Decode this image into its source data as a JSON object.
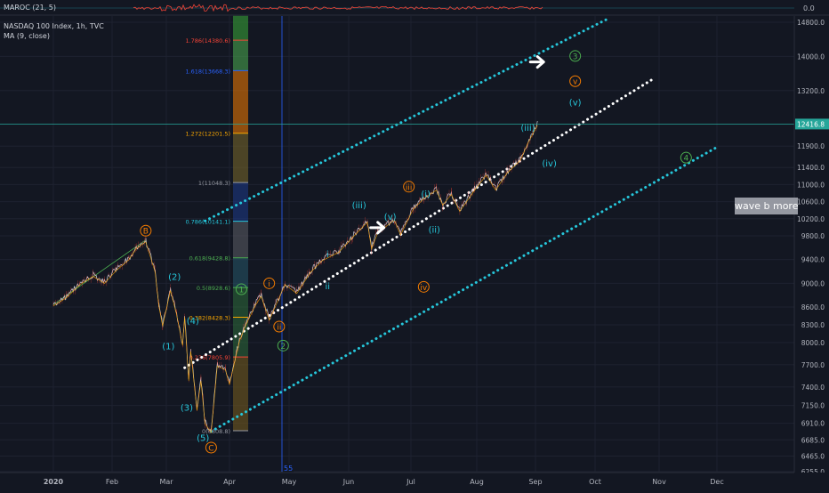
{
  "header": {
    "indicator_name": "MAROC (21, 5)",
    "indicator_value": "0.0",
    "symbol": "NASDAQ 100 Index, 1h, TVC",
    "ma": "MA (9, close)"
  },
  "user_label": "wave b more",
  "chart_data": {
    "type": "line",
    "title": "NASDAQ 100 Index, 1h, TVC",
    "ylim": [
      6255,
      14800
    ],
    "price_ticks": [
      14800,
      14000,
      13200,
      12416.8,
      11900,
      11400,
      11000,
      10600,
      10200,
      9800,
      9400,
      9000,
      8600,
      8300,
      8000,
      7700,
      7400,
      7150,
      6910,
      6685,
      6465,
      6255
    ],
    "last_price": "12416.8",
    "time_ticks": [
      "2020",
      "Feb",
      "Mar",
      "Apr",
      "May",
      "Jun",
      "Jul",
      "Aug",
      "Sep",
      "Oct",
      "Nov",
      "Dec"
    ],
    "fib_levels": [
      {
        "label": "1.786(14380.6)",
        "value": 14380.6,
        "color": "#f44336"
      },
      {
        "label": "1.618(13668.3)",
        "value": 13668.3,
        "color": "#2962ff"
      },
      {
        "label": "1.272(12201.5)",
        "value": 12201.5,
        "color": "#f7a600"
      },
      {
        "label": "1(11048.3)",
        "value": 11048.3,
        "color": "#9598a1"
      },
      {
        "label": "0.786(10141.1)",
        "value": 10141.1,
        "color": "#26c6da"
      },
      {
        "label": "0.618(9428.8)",
        "value": 9428.8,
        "color": "#4caf50"
      },
      {
        "label": "0.5(8928.6)",
        "value": 8928.6,
        "color": "#4caf50"
      },
      {
        "label": "0.382(8428.3)",
        "value": 8428.3,
        "color": "#f7a600"
      },
      {
        "label": "0.236(7805.9)",
        "value": 7805.9,
        "color": "#f44336"
      },
      {
        "label": "0(6808.8)",
        "value": 6808.8,
        "color": "#9598a1"
      }
    ],
    "bar_count_label": "55",
    "price_path": [
      {
        "t": "2020-01-01",
        "v": 8640
      },
      {
        "t": "2020-01-08",
        "v": 8780
      },
      {
        "t": "2020-01-15",
        "v": 9000
      },
      {
        "t": "2020-01-22",
        "v": 9140
      },
      {
        "t": "2020-01-28",
        "v": 9020
      },
      {
        "t": "2020-02-03",
        "v": 9230
      },
      {
        "t": "2020-02-10",
        "v": 9420
      },
      {
        "t": "2020-02-14",
        "v": 9610
      },
      {
        "t": "2020-02-19",
        "v": 9720
      },
      {
        "t": "2020-02-24",
        "v": 9210
      },
      {
        "t": "2020-02-26",
        "v": 8640
      },
      {
        "t": "2020-02-28",
        "v": 8300
      },
      {
        "t": "2020-03-03",
        "v": 8900
      },
      {
        "t": "2020-03-06",
        "v": 8500
      },
      {
        "t": "2020-03-09",
        "v": 7980
      },
      {
        "t": "2020-03-10",
        "v": 8450
      },
      {
        "t": "2020-03-12",
        "v": 7500
      },
      {
        "t": "2020-03-13",
        "v": 7900
      },
      {
        "t": "2020-03-16",
        "v": 7100
      },
      {
        "t": "2020-03-18",
        "v": 7500
      },
      {
        "t": "2020-03-20",
        "v": 6920
      },
      {
        "t": "2020-03-23",
        "v": 6800
      },
      {
        "t": "2020-03-26",
        "v": 7700
      },
      {
        "t": "2020-03-30",
        "v": 7650
      },
      {
        "t": "2020-04-01",
        "v": 7450
      },
      {
        "t": "2020-04-06",
        "v": 8050
      },
      {
        "t": "2020-04-09",
        "v": 8300
      },
      {
        "t": "2020-04-14",
        "v": 8650
      },
      {
        "t": "2020-04-17",
        "v": 8800
      },
      {
        "t": "2020-04-21",
        "v": 8400
      },
      {
        "t": "2020-04-29",
        "v": 9000
      },
      {
        "t": "2020-05-05",
        "v": 8850
      },
      {
        "t": "2020-05-12",
        "v": 9200
      },
      {
        "t": "2020-05-18",
        "v": 9400
      },
      {
        "t": "2020-05-27",
        "v": 9550
      },
      {
        "t": "2020-06-03",
        "v": 9800
      },
      {
        "t": "2020-06-10",
        "v": 10150
      },
      {
        "t": "2020-06-12",
        "v": 9600
      },
      {
        "t": "2020-06-15",
        "v": 9900
      },
      {
        "t": "2020-06-23",
        "v": 10200
      },
      {
        "t": "2020-06-26",
        "v": 9850
      },
      {
        "t": "2020-07-02",
        "v": 10450
      },
      {
        "t": "2020-07-07",
        "v": 10700
      },
      {
        "t": "2020-07-13",
        "v": 10900
      },
      {
        "t": "2020-07-16",
        "v": 10550
      },
      {
        "t": "2020-07-20",
        "v": 10800
      },
      {
        "t": "2020-07-24",
        "v": 10400
      },
      {
        "t": "2020-07-31",
        "v": 10900
      },
      {
        "t": "2020-08-06",
        "v": 11250
      },
      {
        "t": "2020-08-11",
        "v": 10900
      },
      {
        "t": "2020-08-17",
        "v": 11300
      },
      {
        "t": "2020-08-24",
        "v": 11600
      },
      {
        "t": "2020-08-28",
        "v": 12000
      },
      {
        "t": "2020-09-02",
        "v": 12416.8
      }
    ],
    "series": [
      {
        "name": "MA (9, close)"
      }
    ]
  },
  "wave_labels": [
    {
      "text": "B",
      "t": "2020-02-19",
      "v": 9920,
      "style": "circle",
      "color": "#f57c00"
    },
    {
      "text": "(2)",
      "t": "2020-03-05",
      "v": 9110,
      "style": "plain",
      "color": "#26c6da"
    },
    {
      "text": "(1)",
      "t": "2020-03-02",
      "v": 7950,
      "style": "plain",
      "color": "#26c6da"
    },
    {
      "text": "(4)",
      "t": "2020-03-14",
      "v": 8370,
      "style": "plain",
      "color": "#26c6da"
    },
    {
      "text": "(3)",
      "t": "2020-03-11",
      "v": 7120,
      "style": "plain",
      "color": "#26c6da"
    },
    {
      "text": "(5)",
      "t": "2020-03-19",
      "v": 6710,
      "style": "plain",
      "color": "#26c6da"
    },
    {
      "text": "C",
      "t": "2020-03-23",
      "v": 6580,
      "style": "circle",
      "color": "#f57c00"
    },
    {
      "text": "1",
      "t": "2020-04-07",
      "v": 8900,
      "style": "circle",
      "color": "#4caf50"
    },
    {
      "text": "2",
      "t": "2020-04-28",
      "v": 7960,
      "style": "circle",
      "color": "#4caf50"
    },
    {
      "text": "i",
      "t": "2020-04-21",
      "v": 9000,
      "style": "circle",
      "color": "#f57c00"
    },
    {
      "text": "ii",
      "t": "2020-04-26",
      "v": 8270,
      "style": "circle",
      "color": "#f57c00"
    },
    {
      "text": "i",
      "t": "2020-05-21",
      "v": 9490,
      "style": "plain",
      "color": "#26c6da"
    },
    {
      "text": "ii",
      "t": "2020-05-21",
      "v": 8950,
      "style": "plain",
      "color": "#26c6da"
    },
    {
      "text": "(iii)",
      "t": "2020-06-06",
      "v": 10520,
      "style": "plain",
      "color": "#26c6da"
    },
    {
      "text": "iii",
      "t": "2020-06-30",
      "v": 10950,
      "style": "circle",
      "color": "#f57c00"
    },
    {
      "text": "(v)",
      "t": "2020-06-21",
      "v": 10250,
      "style": "plain",
      "color": "#26c6da"
    },
    {
      "text": "(i)",
      "t": "2020-07-08",
      "v": 10780,
      "style": "plain",
      "color": "#26c6da"
    },
    {
      "text": "(ii)",
      "t": "2020-07-12",
      "v": 9950,
      "style": "plain",
      "color": "#26c6da"
    },
    {
      "text": "iv",
      "t": "2020-07-07",
      "v": 8940,
      "style": "circle",
      "color": "#f57c00"
    },
    {
      "text": "(iii)",
      "t": "2020-08-28",
      "v": 12330,
      "style": "plain",
      "color": "#26c6da"
    },
    {
      "text": "(iv)",
      "t": "2020-09-08",
      "v": 11500,
      "style": "plain",
      "color": "#26c6da"
    },
    {
      "text": "3",
      "t": "2020-09-21",
      "v": 14010,
      "style": "circle",
      "color": "#4caf50"
    },
    {
      "text": "v",
      "t": "2020-09-21",
      "v": 13420,
      "style": "circle",
      "color": "#f57c00"
    },
    {
      "text": "(v)",
      "t": "2020-09-21",
      "v": 12920,
      "style": "plain",
      "color": "#26c6da"
    },
    {
      "text": "4",
      "t": "2020-11-15",
      "v": 11630,
      "style": "circle",
      "color": "#4caf50"
    }
  ],
  "trend_lines": [
    {
      "name": "upper-channel",
      "from": {
        "t": "2020-03-20",
        "v": 10150
      },
      "to": {
        "t": "2020-10-08",
        "v": 14900
      },
      "color": "#26c6da",
      "style": "dotted"
    },
    {
      "name": "middle-trendline",
      "from": {
        "t": "2020-03-10",
        "v": 7660
      },
      "to": {
        "t": "2020-10-30",
        "v": 13500
      },
      "color": "#ffffff",
      "style": "dotted"
    },
    {
      "name": "lower-channel",
      "from": {
        "t": "2020-03-23",
        "v": 6800
      },
      "to": {
        "t": "2020-11-30",
        "v": 11850
      },
      "color": "#26c6da",
      "style": "dotted"
    },
    {
      "name": "pre-crash-trendline",
      "from": {
        "t": "2020-01-01",
        "v": 8640
      },
      "to": {
        "t": "2020-02-19",
        "v": 9730
      },
      "color": "#4caf50",
      "style": "solid"
    }
  ],
  "arrows": [
    {
      "t": "2020-09-02",
      "v": 13870
    },
    {
      "t": "2020-06-15",
      "v": 9990
    }
  ]
}
